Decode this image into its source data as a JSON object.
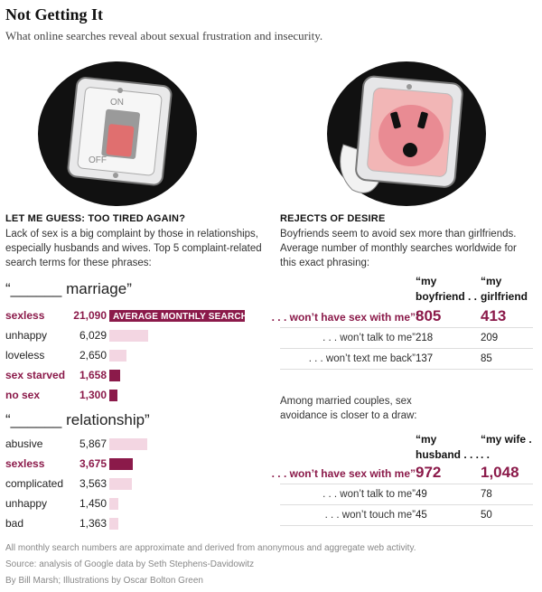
{
  "title": "Not Getting It",
  "subtitle": "What online searches reveal about sexual frustration and insecurity.",
  "illustrations": {
    "left_switch_on": "ON",
    "left_switch_off": "OFF"
  },
  "left": {
    "heading": "LET ME GUESS: TOO TIRED AGAIN?",
    "description": "Lack of sex is a big complaint by those in relationships, especially husbands and wives. Top 5 complaint-related search terms for these phrases:"
  },
  "right": {
    "heading": "REJECTS OF DESIRE",
    "description": "Boyfriends seem to avoid sex more than girlfriends. Average number of monthly searches worldwide for this exact phrasing:",
    "married_description": "Among married couples, sex avoidance is closer to a draw:"
  },
  "colors": {
    "accent": "#8b1a4a",
    "bar_light": "#f3d6e2"
  },
  "chart_data": [
    {
      "type": "bar",
      "title": "“______ marriage”",
      "bar_legend": "AVERAGE MONTHLY SEARCHES",
      "categories": [
        "sexless",
        "unhappy",
        "loveless",
        "sex starved",
        "no sex"
      ],
      "values": [
        21090,
        6029,
        2650,
        1658,
        1300
      ],
      "value_labels": [
        "21,090",
        "6,029",
        "2,650",
        "1,658",
        "1,300"
      ],
      "highlighted": [
        true,
        false,
        false,
        true,
        true
      ]
    },
    {
      "type": "bar",
      "title": "“______ relationship”",
      "categories": [
        "abusive",
        "sexless",
        "complicated",
        "unhappy",
        "bad"
      ],
      "values": [
        5867,
        3675,
        3563,
        1450,
        1363
      ],
      "value_labels": [
        "5,867",
        "3,675",
        "3,563",
        "1,450",
        "1,363"
      ],
      "highlighted": [
        false,
        true,
        false,
        false,
        false
      ]
    },
    {
      "type": "table",
      "columns": [
        "“my boyfriend . . .",
        "“my girlfriend"
      ],
      "rows": [
        {
          "phrase": ". . . won’t have sex with me”",
          "values": [
            "805",
            "413"
          ],
          "highlighted": true
        },
        {
          "phrase": ". . . won’t talk to me”",
          "values": [
            "218",
            "209"
          ],
          "highlighted": false
        },
        {
          "phrase": ". . . won’t text me back”",
          "values": [
            "137",
            "85"
          ],
          "highlighted": false
        }
      ]
    },
    {
      "type": "table",
      "columns": [
        "“my husband . . .",
        "“my wife . . ."
      ],
      "rows": [
        {
          "phrase": ". . . won’t have sex with me”",
          "values": [
            "972",
            "1,048"
          ],
          "highlighted": true
        },
        {
          "phrase": ". . . won’t talk to me”",
          "values": [
            "49",
            "78"
          ],
          "highlighted": false
        },
        {
          "phrase": ". . . won’t touch me”",
          "values": [
            "45",
            "50"
          ],
          "highlighted": false
        }
      ]
    }
  ],
  "footnotes": {
    "note": "All monthly search numbers are approximate and derived from anonymous and aggregate web activity.",
    "source": "Source: analysis of Google data by Seth Stephens-Davidowitz",
    "credit": "By Bill Marsh; Illustrations by Oscar Bolton Green"
  }
}
